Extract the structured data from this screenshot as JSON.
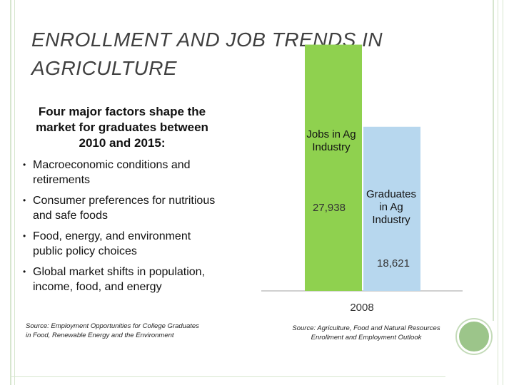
{
  "slide": {
    "title": "ENROLLMENT AND JOB TRENDS IN AGRICULTURE",
    "intro": "Four major factors shape the market for graduates between 2010 and 2015:",
    "bullets": [
      "Macroeconomic conditions and retirements",
      "Consumer preferences for nutritious and safe foods",
      "Food, energy, and environment public policy choices",
      "Global market shifts in population, income, food, and energy"
    ],
    "source_left": "Source: Employment Opportunities for College Graduates in Food, Renewable Energy and the Environment",
    "source_right": "Source: Agriculture, Food and Natural Resources Enrollment and Employment Outlook"
  },
  "chart_data": {
    "type": "bar",
    "categories": [
      "2008"
    ],
    "series": [
      {
        "name": "Jobs in Ag Industry",
        "values": [
          27938
        ],
        "label": "27,938",
        "color": "#8fd14f"
      },
      {
        "name": "Graduates in Ag Industry",
        "values": [
          18621
        ],
        "label": "18,621",
        "color": "#b7d7ee"
      }
    ],
    "title": "",
    "xlabel": "",
    "ylabel": "",
    "ylim": [
      0,
      33000
    ],
    "grid": false
  },
  "colors": {
    "accent": "#9cc58a",
    "frame": "#d7e6cf",
    "title": "#404040"
  }
}
